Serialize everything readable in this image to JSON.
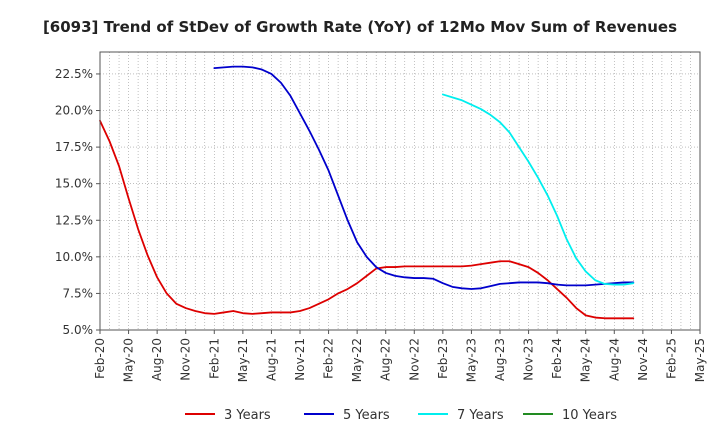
{
  "chart_data": {
    "type": "line",
    "title": "[6093]  Trend of StDev of Growth Rate (YoY) of 12Mo Mov Sum of Revenues",
    "xlabel": "",
    "ylabel": "",
    "ylim": [
      5.0,
      24.0
    ],
    "yticks": [
      5.0,
      7.5,
      10.0,
      12.5,
      15.0,
      17.5,
      20.0,
      22.5
    ],
    "ytick_labels": [
      "5.0%",
      "7.5%",
      "10.0%",
      "12.5%",
      "15.0%",
      "17.5%",
      "20.0%",
      "22.5%"
    ],
    "x_start": "Feb-20",
    "x_months": 63,
    "xtick_labels": [
      "Feb-20",
      "May-20",
      "Aug-20",
      "Nov-20",
      "Feb-21",
      "May-21",
      "Aug-21",
      "Nov-21",
      "Feb-22",
      "May-22",
      "Aug-22",
      "Nov-22",
      "Feb-23",
      "May-23",
      "Aug-23",
      "Nov-23",
      "Feb-24",
      "May-24",
      "Aug-24",
      "Nov-24",
      "Feb-25",
      "May-25"
    ],
    "grid": true,
    "legend_position": "bottom",
    "series": [
      {
        "name": "3 Years",
        "color": "#dd0000",
        "start_index": 0,
        "values": [
          19.3,
          17.9,
          16.2,
          14.0,
          11.9,
          10.1,
          8.6,
          7.5,
          6.8,
          6.5,
          6.3,
          6.15,
          6.1,
          6.2,
          6.3,
          6.15,
          6.1,
          6.15,
          6.2,
          6.2,
          6.2,
          6.3,
          6.5,
          6.8,
          7.1,
          7.5,
          7.8,
          8.2,
          8.7,
          9.2,
          9.3,
          9.3,
          9.35,
          9.35,
          9.35,
          9.35,
          9.35,
          9.35,
          9.35,
          9.4,
          9.5,
          9.6,
          9.7,
          9.7,
          9.5,
          9.3,
          8.9,
          8.4,
          7.8,
          7.2,
          6.5,
          6.0,
          5.85,
          5.8,
          5.8,
          5.8,
          5.8
        ]
      },
      {
        "name": "5 Years",
        "color": "#0000cc",
        "start_index": 12,
        "values": [
          22.9,
          22.95,
          23.0,
          23.0,
          22.95,
          22.8,
          22.5,
          21.9,
          21.0,
          19.8,
          18.6,
          17.3,
          15.9,
          14.2,
          12.5,
          11.0,
          10.0,
          9.3,
          8.9,
          8.7,
          8.6,
          8.55,
          8.55,
          8.5,
          8.2,
          7.95,
          7.85,
          7.8,
          7.85,
          8.0,
          8.15,
          8.2,
          8.25,
          8.25,
          8.25,
          8.2,
          8.1,
          8.05,
          8.05,
          8.05,
          8.1,
          8.15,
          8.2,
          8.25,
          8.25
        ]
      },
      {
        "name": "7 Years",
        "color": "#00eeee",
        "start_index": 36,
        "values": [
          21.1,
          20.9,
          20.7,
          20.4,
          20.1,
          19.7,
          19.2,
          18.5,
          17.5,
          16.5,
          15.4,
          14.2,
          12.8,
          11.2,
          9.9,
          9.0,
          8.4,
          8.15,
          8.1,
          8.1,
          8.2
        ]
      },
      {
        "name": "10 Years",
        "color": "#228b22",
        "start_index": 0,
        "values": []
      }
    ]
  }
}
